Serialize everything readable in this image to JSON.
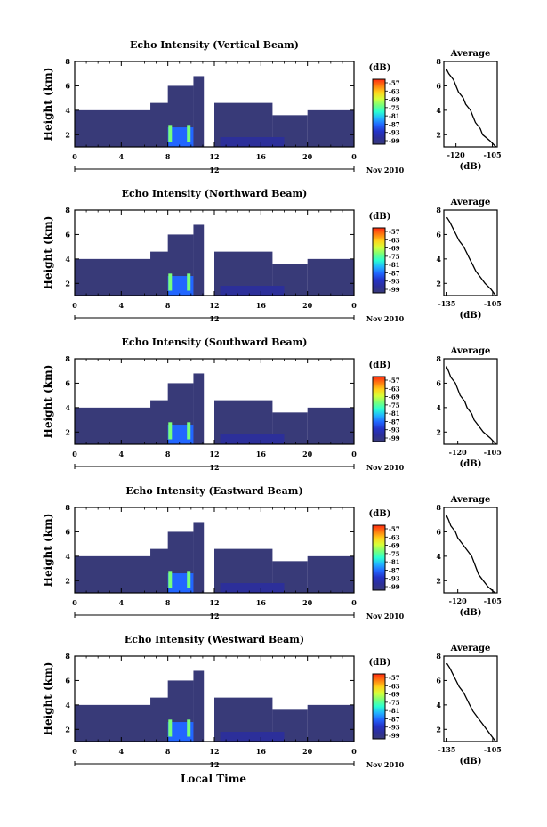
{
  "chart_data": {
    "type": "heatmap",
    "xlabel": "Local Time",
    "x_ticks": [
      "0",
      "4",
      "8",
      "12",
      "16",
      "20",
      "0"
    ],
    "xlim": [
      0,
      24
    ],
    "date_day": "12",
    "date_label": "Nov 2010",
    "y_ticks": [
      "2",
      "4",
      "6",
      "8"
    ],
    "ylim": [
      1,
      8
    ],
    "colorbar": {
      "unit": "(dB)",
      "ticks": [
        "-57",
        "-63",
        "-69",
        "-75",
        "-81",
        "-87",
        "-93",
        "-99"
      ],
      "colors": [
        "#ff2a10",
        "#ff7d10",
        "#ffd21a",
        "#d6ff3a",
        "#78ff7a",
        "#2affd2",
        "#22b4ff",
        "#2266ff",
        "#2434c8",
        "#2c2f9a",
        "#383a78"
      ]
    },
    "average_profile": {
      "title": "Average",
      "xlabel": "(dB)",
      "y_ticks": [
        "2",
        "4",
        "6",
        "8"
      ]
    },
    "panels": [
      {
        "title": "Echo Intensity (Vertical Beam)",
        "ylabel": "Height (km)",
        "avg_xticks": [
          "-120",
          "-105"
        ],
        "avg_xlim": [
          -125,
          -103
        ],
        "avg_profile": {
          "heights": [
            1.0,
            1.5,
            2.0,
            2.5,
            3.0,
            3.5,
            4.0,
            4.5,
            5.0,
            5.5,
            6.0,
            6.5,
            7.0,
            7.4
          ],
          "values": [
            -103.5,
            -106,
            -109,
            -110,
            -112,
            -113,
            -114,
            -116,
            -117,
            -119,
            -120,
            -121,
            -123,
            -124
          ]
        }
      },
      {
        "title": "Echo Intensity (Northward Beam)",
        "ylabel": "Height (km)",
        "avg_xticks": [
          "-135",
          "-105"
        ],
        "avg_xlim": [
          -137,
          -102
        ],
        "avg_profile": {
          "heights": [
            1.0,
            1.5,
            2.0,
            2.5,
            3.0,
            3.5,
            4.0,
            4.5,
            5.0,
            5.5,
            6.0,
            6.5,
            7.0,
            7.4
          ],
          "values": [
            -103,
            -106,
            -110,
            -113,
            -116,
            -118,
            -120,
            -122,
            -124,
            -127,
            -129,
            -131,
            -133,
            -135
          ]
        }
      },
      {
        "title": "Echo Intensity (Southward Beam)",
        "ylabel": "Height (km)",
        "avg_xticks": [
          "-120",
          "-105"
        ],
        "avg_xlim": [
          -126,
          -103
        ],
        "avg_profile": {
          "heights": [
            1.0,
            1.5,
            2.0,
            2.5,
            3.0,
            3.5,
            4.0,
            4.5,
            5.0,
            5.5,
            6.0,
            6.5,
            7.0,
            7.4
          ],
          "values": [
            -103.5,
            -106,
            -109,
            -111,
            -113,
            -114,
            -116,
            -117,
            -119,
            -120,
            -121,
            -123,
            -124,
            -125
          ]
        }
      },
      {
        "title": "Echo Intensity (Eastward Beam)",
        "ylabel": "Height (km)",
        "avg_xticks": [
          "-120",
          "-105"
        ],
        "avg_xlim": [
          -126,
          -103
        ],
        "avg_profile": {
          "heights": [
            1.0,
            1.5,
            2.0,
            2.5,
            3.0,
            3.5,
            4.0,
            4.5,
            5.0,
            5.5,
            6.0,
            6.5,
            7.0,
            7.4
          ],
          "values": [
            -104,
            -107,
            -109,
            -111,
            -112,
            -113,
            -114,
            -116,
            -118,
            -120,
            -121,
            -123,
            -124,
            -125
          ]
        }
      },
      {
        "title": "Echo Intensity (Westward Beam)",
        "ylabel": "Height (km)",
        "avg_xticks": [
          "-135",
          "-105"
        ],
        "avg_xlim": [
          -137,
          -102
        ],
        "avg_profile": {
          "heights": [
            1.0,
            1.5,
            2.0,
            2.5,
            3.0,
            3.5,
            4.0,
            4.5,
            5.0,
            5.5,
            6.0,
            6.5,
            7.0,
            7.4
          ],
          "values": [
            -103,
            -106,
            -109,
            -112,
            -115,
            -118,
            -120,
            -122,
            -124,
            -127,
            -129,
            -131,
            -133,
            -135
          ]
        }
      }
    ],
    "echo_layers": [
      {
        "x0": 0.0,
        "x1": 8.0,
        "top": 4.0,
        "value": -99
      },
      {
        "x0": 6.5,
        "x1": 8.3,
        "top": 4.6,
        "value": -99
      },
      {
        "x0": 8.0,
        "x1": 10.2,
        "top": 6.0,
        "value": -99
      },
      {
        "x0": 10.2,
        "x1": 11.1,
        "top": 6.8,
        "value": -99
      },
      {
        "x0": 12.0,
        "x1": 17.0,
        "top": 4.6,
        "value": -99
      },
      {
        "x0": 17.0,
        "x1": 20.0,
        "top": 3.6,
        "value": -99
      },
      {
        "x0": 20.0,
        "x1": 24.0,
        "top": 4.0,
        "value": -99
      },
      {
        "x0": 8.0,
        "x1": 10.2,
        "bottom": 1.0,
        "top": 2.6,
        "value": -87
      },
      {
        "x0": 12.5,
        "x1": 18.0,
        "bottom": 1.0,
        "top": 1.8,
        "value": -93
      }
    ]
  }
}
